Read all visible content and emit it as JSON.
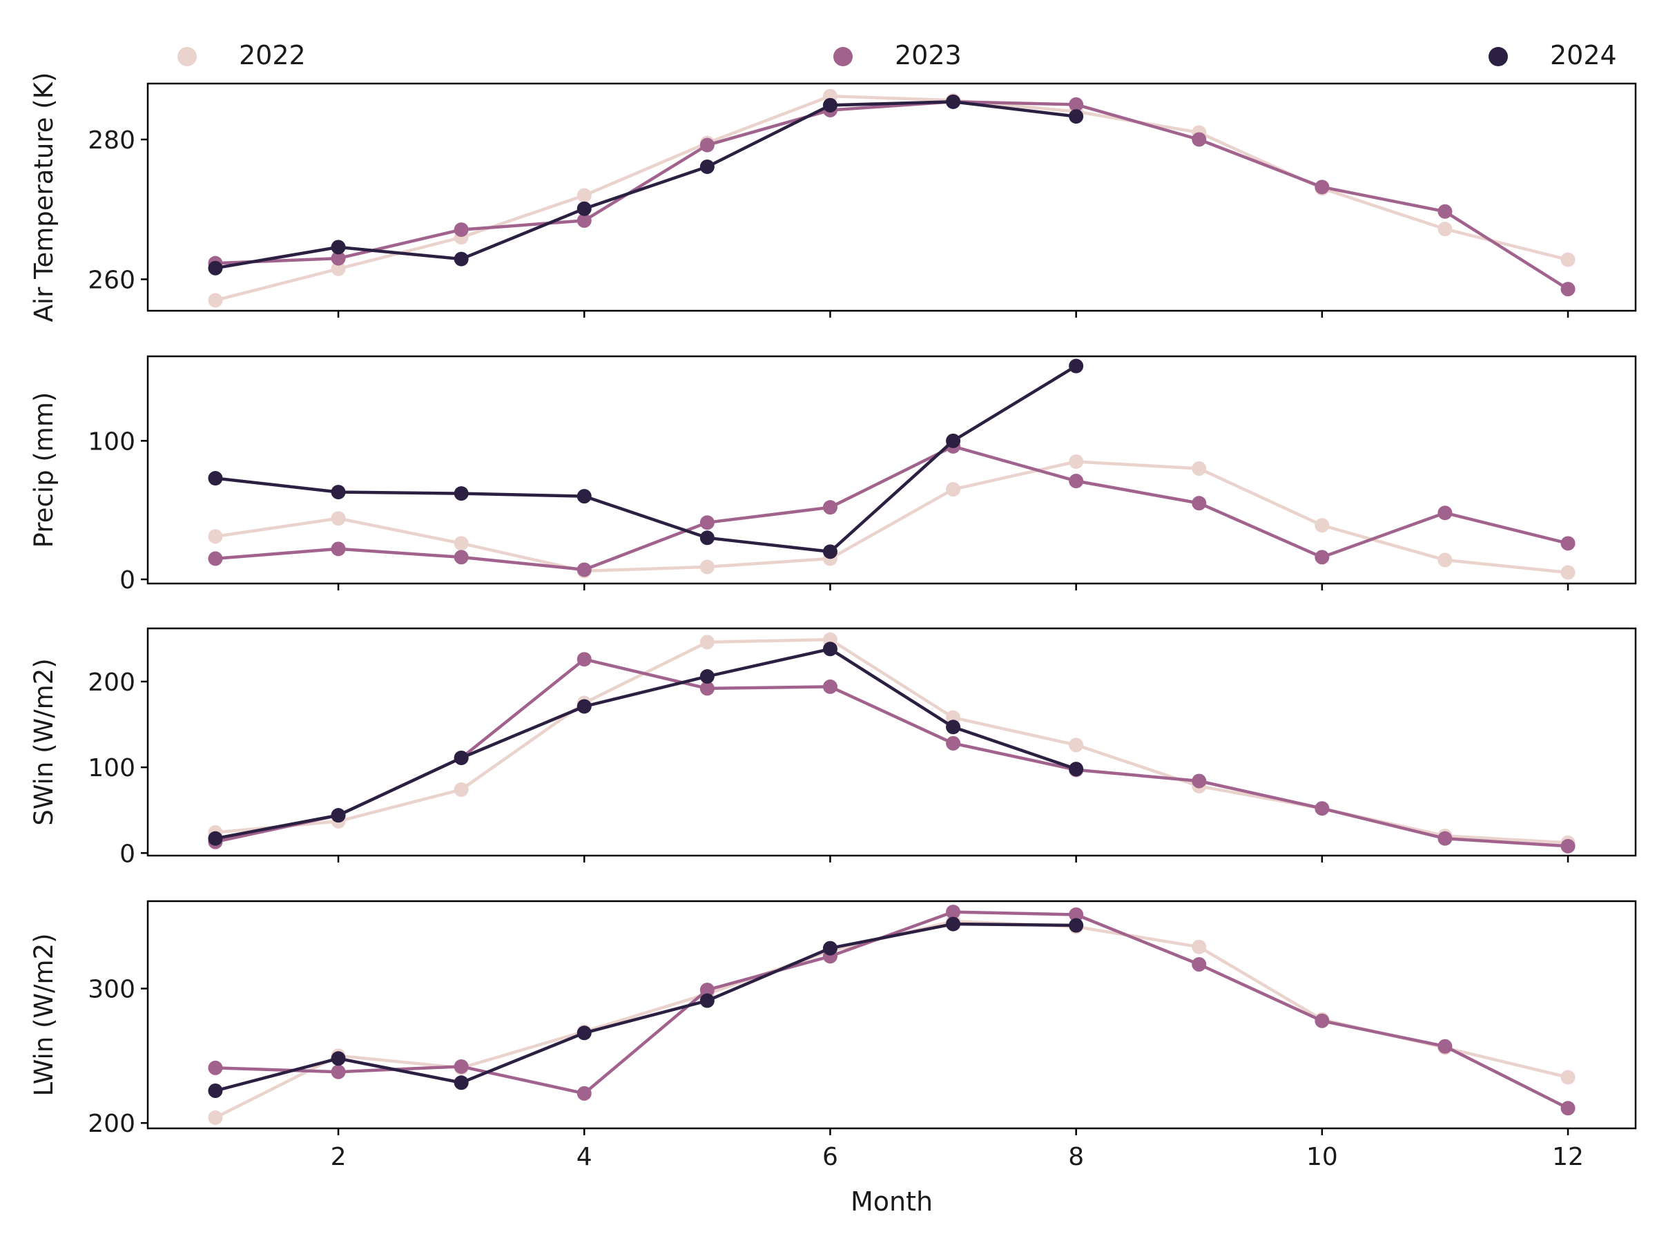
{
  "chart_data": {
    "type": "line",
    "x": [
      1,
      2,
      3,
      4,
      5,
      6,
      7,
      8,
      9,
      10,
      11,
      12
    ],
    "xlabel": "Month",
    "xticks": [
      2,
      4,
      6,
      8,
      10,
      12
    ],
    "xlim": [
      0.45,
      12.55
    ],
    "legend": {
      "placement": "top",
      "entries": [
        {
          "name": "2022",
          "color": "#ebd3cd"
        },
        {
          "name": "2023",
          "color": "#a1638d"
        },
        {
          "name": "2024",
          "color": "#2b1f42"
        }
      ]
    },
    "panels": [
      {
        "ylabel": "Air Temperature (K)",
        "ylim": [
          255.5,
          288.0
        ],
        "yticks": [
          260,
          280
        ],
        "series": [
          {
            "name": "2022",
            "values": [
              257.0,
              261.5,
              266.0,
              272.0,
              279.5,
              286.2,
              285.6,
              284.0,
              281.0,
              273.0,
              267.2,
              262.8
            ]
          },
          {
            "name": "2023",
            "values": [
              262.3,
              263.0,
              267.1,
              268.4,
              279.2,
              284.2,
              285.4,
              285.0,
              280.0,
              273.2,
              269.7,
              258.6
            ]
          },
          {
            "name": "2024",
            "values": [
              261.6,
              264.6,
              262.9,
              270.1,
              276.1,
              284.9,
              285.4,
              283.3
            ]
          }
        ]
      },
      {
        "ylabel": "Precip (mm)",
        "ylim": [
          -3,
          161
        ],
        "yticks": [
          0,
          100
        ],
        "series": [
          {
            "name": "2022",
            "values": [
              31.0,
              44.0,
              26.0,
              6.0,
              9.0,
              15.0,
              65.0,
              85.0,
              80.0,
              39.0,
              14.0,
              5.0
            ]
          },
          {
            "name": "2023",
            "values": [
              15.0,
              22.0,
              16.0,
              7.0,
              41.0,
              52.0,
              96.0,
              71.0,
              55.0,
              16.0,
              48.0,
              26.0
            ]
          },
          {
            "name": "2024",
            "values": [
              73.0,
              63.0,
              62.0,
              60.0,
              30.0,
              20.0,
              100.0,
              154.0
            ]
          }
        ]
      },
      {
        "ylabel": "SWin (W/m2)",
        "ylim": [
          -3,
          262
        ],
        "yticks": [
          0,
          100,
          200
        ],
        "series": [
          {
            "name": "2022",
            "values": [
              24.0,
              37.0,
              74.0,
              175.0,
              246.0,
              249.0,
              158.0,
              126.0,
              78.0,
              52.0,
              20.0,
              12.0
            ]
          },
          {
            "name": "2023",
            "values": [
              13.0,
              44.0,
              111.0,
              226.0,
              192.0,
              194.0,
              128.0,
              97.0,
              84.0,
              52.0,
              17.0,
              8.0
            ]
          },
          {
            "name": "2024",
            "values": [
              17.0,
              44.0,
              111.0,
              171.0,
              206.0,
              238.0,
              147.0,
              98.0
            ]
          }
        ]
      },
      {
        "ylabel": "LWin (W/m2)",
        "ylim": [
          196,
          365
        ],
        "yticks": [
          200,
          300
        ],
        "series": [
          {
            "name": "2022",
            "values": [
              204.0,
              250.0,
              241.0,
              268.0,
              296.0,
              328.0,
              350.0,
              346.0,
              331.0,
              277.0,
              256.0,
              234.0
            ]
          },
          {
            "name": "2023",
            "values": [
              241.0,
              238.0,
              242.0,
              222.0,
              299.0,
              324.0,
              357.0,
              355.0,
              318.0,
              276.0,
              257.0,
              211.0
            ]
          },
          {
            "name": "2024",
            "values": [
              224.0,
              248.0,
              230.0,
              267.0,
              291.0,
              330.0,
              348.0,
              347.0
            ]
          }
        ]
      }
    ]
  }
}
